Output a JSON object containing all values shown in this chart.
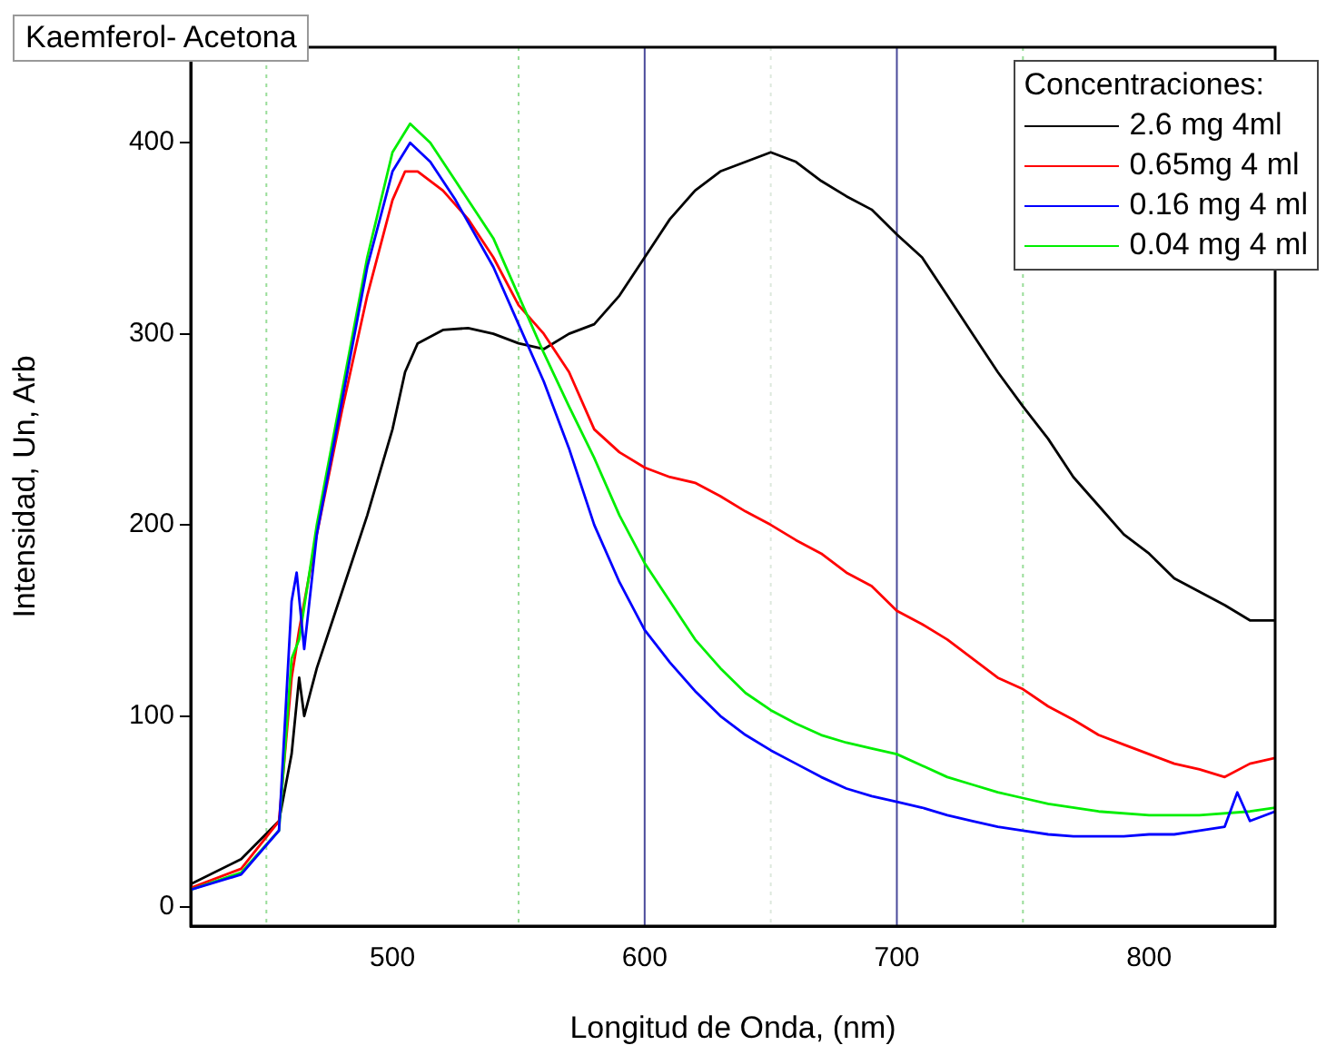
{
  "chart_data": {
    "type": "line",
    "title": "Kaemferol- Acetona",
    "xlabel": "Longitud de Onda, (nm)",
    "ylabel": "Intensidad, Un, Arb",
    "legend_title": "Concentraciones:",
    "xlim": [
      420,
      850
    ],
    "xticks": [
      500,
      600,
      700,
      800
    ],
    "ylim": [
      -10,
      450
    ],
    "yticks": [
      0,
      100,
      200,
      300,
      400
    ],
    "grid": false,
    "legend": "top right",
    "marker": "none",
    "line_style": "solid",
    "ref_lines": [
      {
        "axis": "x",
        "value": 450,
        "color": "#99dd99",
        "line_style": "dotted"
      },
      {
        "axis": "x",
        "value": 550,
        "color": "#99dd99",
        "line_style": "dotted"
      },
      {
        "axis": "x",
        "value": 650,
        "color": "#dde8dd",
        "line_style": "dotted"
      },
      {
        "axis": "x",
        "value": 750,
        "color": "#99dd99",
        "line_style": "dotted"
      },
      {
        "axis": "x",
        "value": 600,
        "color": "#4a4a9a",
        "line_style": "solid"
      },
      {
        "axis": "x",
        "value": 700,
        "color": "#4a4a9a",
        "line_style": "solid"
      }
    ],
    "series": [
      {
        "name": "2.6 mg 4ml",
        "color": "#000000",
        "x": [
          420,
          440,
          455,
          460,
          463,
          465,
          470,
          480,
          490,
          500,
          505,
          510,
          520,
          530,
          540,
          550,
          560,
          570,
          580,
          590,
          600,
          610,
          620,
          630,
          640,
          650,
          660,
          670,
          680,
          690,
          700,
          710,
          720,
          730,
          740,
          750,
          760,
          770,
          780,
          790,
          800,
          810,
          820,
          830,
          840,
          850
        ],
        "values": [
          12,
          25,
          45,
          80,
          120,
          100,
          125,
          165,
          205,
          250,
          280,
          295,
          302,
          303,
          300,
          295,
          292,
          300,
          305,
          320,
          340,
          360,
          375,
          385,
          390,
          395,
          390,
          380,
          372,
          365,
          352,
          340,
          320,
          300,
          280,
          262,
          245,
          225,
          210,
          195,
          185,
          172,
          165,
          158,
          150,
          150
        ]
      },
      {
        "name": "0.65mg 4 ml",
        "color": "#ff0000",
        "x": [
          420,
          440,
          455,
          460,
          463,
          470,
          480,
          490,
          500,
          505,
          510,
          520,
          530,
          540,
          550,
          560,
          570,
          580,
          590,
          600,
          610,
          620,
          630,
          640,
          650,
          660,
          670,
          680,
          690,
          700,
          710,
          720,
          730,
          740,
          750,
          760,
          770,
          780,
          790,
          800,
          810,
          820,
          830,
          840,
          850
        ],
        "values": [
          10,
          20,
          45,
          120,
          145,
          195,
          260,
          320,
          370,
          385,
          385,
          375,
          360,
          340,
          315,
          300,
          280,
          250,
          238,
          230,
          225,
          222,
          215,
          207,
          200,
          192,
          185,
          175,
          168,
          155,
          148,
          140,
          130,
          120,
          114,
          105,
          98,
          90,
          85,
          80,
          75,
          72,
          68,
          75,
          78
        ]
      },
      {
        "name": "0.16 mg 4 ml",
        "color": "#0000ff",
        "x": [
          420,
          440,
          455,
          460,
          462,
          465,
          470,
          480,
          490,
          500,
          507,
          515,
          525,
          540,
          550,
          560,
          570,
          580,
          590,
          600,
          610,
          620,
          630,
          640,
          650,
          660,
          670,
          680,
          690,
          700,
          710,
          720,
          730,
          740,
          750,
          760,
          770,
          780,
          790,
          800,
          810,
          820,
          830,
          835,
          840,
          850
        ],
        "values": [
          9,
          17,
          40,
          160,
          175,
          135,
          195,
          265,
          335,
          385,
          400,
          390,
          370,
          335,
          305,
          275,
          240,
          200,
          170,
          145,
          128,
          113,
          100,
          90,
          82,
          75,
          68,
          62,
          58,
          55,
          52,
          48,
          45,
          42,
          40,
          38,
          37,
          37,
          37,
          38,
          38,
          40,
          42,
          60,
          45,
          50
        ]
      },
      {
        "name": "0.04 mg 4 ml",
        "color": "#00ee00",
        "x": [
          420,
          440,
          455,
          460,
          463,
          470,
          480,
          490,
          500,
          507,
          515,
          525,
          540,
          550,
          560,
          570,
          580,
          590,
          600,
          610,
          620,
          630,
          640,
          650,
          660,
          670,
          680,
          690,
          700,
          710,
          720,
          730,
          740,
          750,
          760,
          780,
          800,
          820,
          840,
          850
        ],
        "values": [
          9,
          18,
          40,
          130,
          140,
          200,
          270,
          340,
          395,
          410,
          400,
          380,
          350,
          320,
          290,
          262,
          235,
          205,
          180,
          160,
          140,
          125,
          112,
          103,
          96,
          90,
          86,
          83,
          80,
          74,
          68,
          64,
          60,
          57,
          54,
          50,
          48,
          48,
          50,
          52
        ]
      }
    ]
  }
}
